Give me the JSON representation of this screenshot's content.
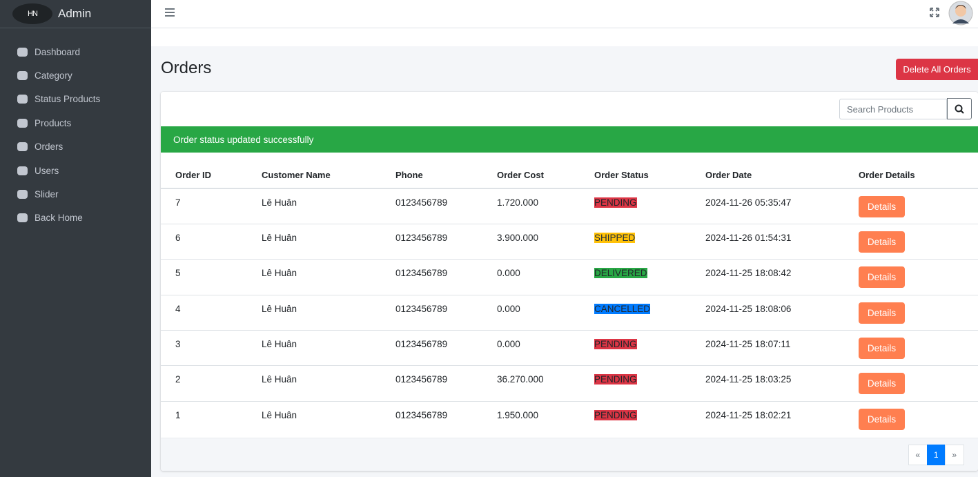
{
  "sidebar": {
    "logo": "HN",
    "brand": "Admin",
    "menu": [
      "Dashboard",
      "Category",
      "Status Products",
      "Products",
      "Orders",
      "Users",
      "Slider",
      "Back Home"
    ]
  },
  "page": {
    "title": "Orders",
    "delete_button": "Delete All Orders",
    "search_placeholder": "Search Products",
    "alert": "Order status updated successfully"
  },
  "table": {
    "headers": [
      "Order ID",
      "Customer Name",
      "Phone",
      "Order Cost",
      "Order Status",
      "Order Date",
      "Order Details"
    ],
    "rows": [
      {
        "id": "7",
        "customer": "Lê Huân",
        "phone": "0123456789",
        "cost": "1.720.000",
        "status": "PENDING",
        "status_color": "#dc3545",
        "date": "2024-11-26 05:35:47",
        "action": "Details"
      },
      {
        "id": "6",
        "customer": "Lê Huân",
        "phone": "0123456789",
        "cost": "3.900.000",
        "status": "SHIPPED",
        "status_color": "#ffc107",
        "date": "2024-11-26 01:54:31",
        "action": "Details"
      },
      {
        "id": "5",
        "customer": "Lê Huân",
        "phone": "0123456789",
        "cost": "0.000",
        "status": "DELIVERED",
        "status_color": "#28a745",
        "date": "2024-11-25 18:08:42",
        "action": "Details"
      },
      {
        "id": "4",
        "customer": "Lê Huân",
        "phone": "0123456789",
        "cost": "0.000",
        "status": "CANCELLED",
        "status_color": "#007bff",
        "date": "2024-11-25 18:08:06",
        "action": "Details"
      },
      {
        "id": "3",
        "customer": "Lê Huân",
        "phone": "0123456789",
        "cost": "0.000",
        "status": "PENDING",
        "status_color": "#dc3545",
        "date": "2024-11-25 18:07:11",
        "action": "Details"
      },
      {
        "id": "2",
        "customer": "Lê Huân",
        "phone": "0123456789",
        "cost": "36.270.000",
        "status": "PENDING",
        "status_color": "#dc3545",
        "date": "2024-11-25 18:03:25",
        "action": "Details"
      },
      {
        "id": "1",
        "customer": "Lê Huân",
        "phone": "0123456789",
        "cost": "1.950.000",
        "status": "PENDING",
        "status_color": "#dc3545",
        "date": "2024-11-25 18:02:21",
        "action": "Details"
      }
    ]
  },
  "pagination": [
    "«",
    "1",
    "»"
  ]
}
